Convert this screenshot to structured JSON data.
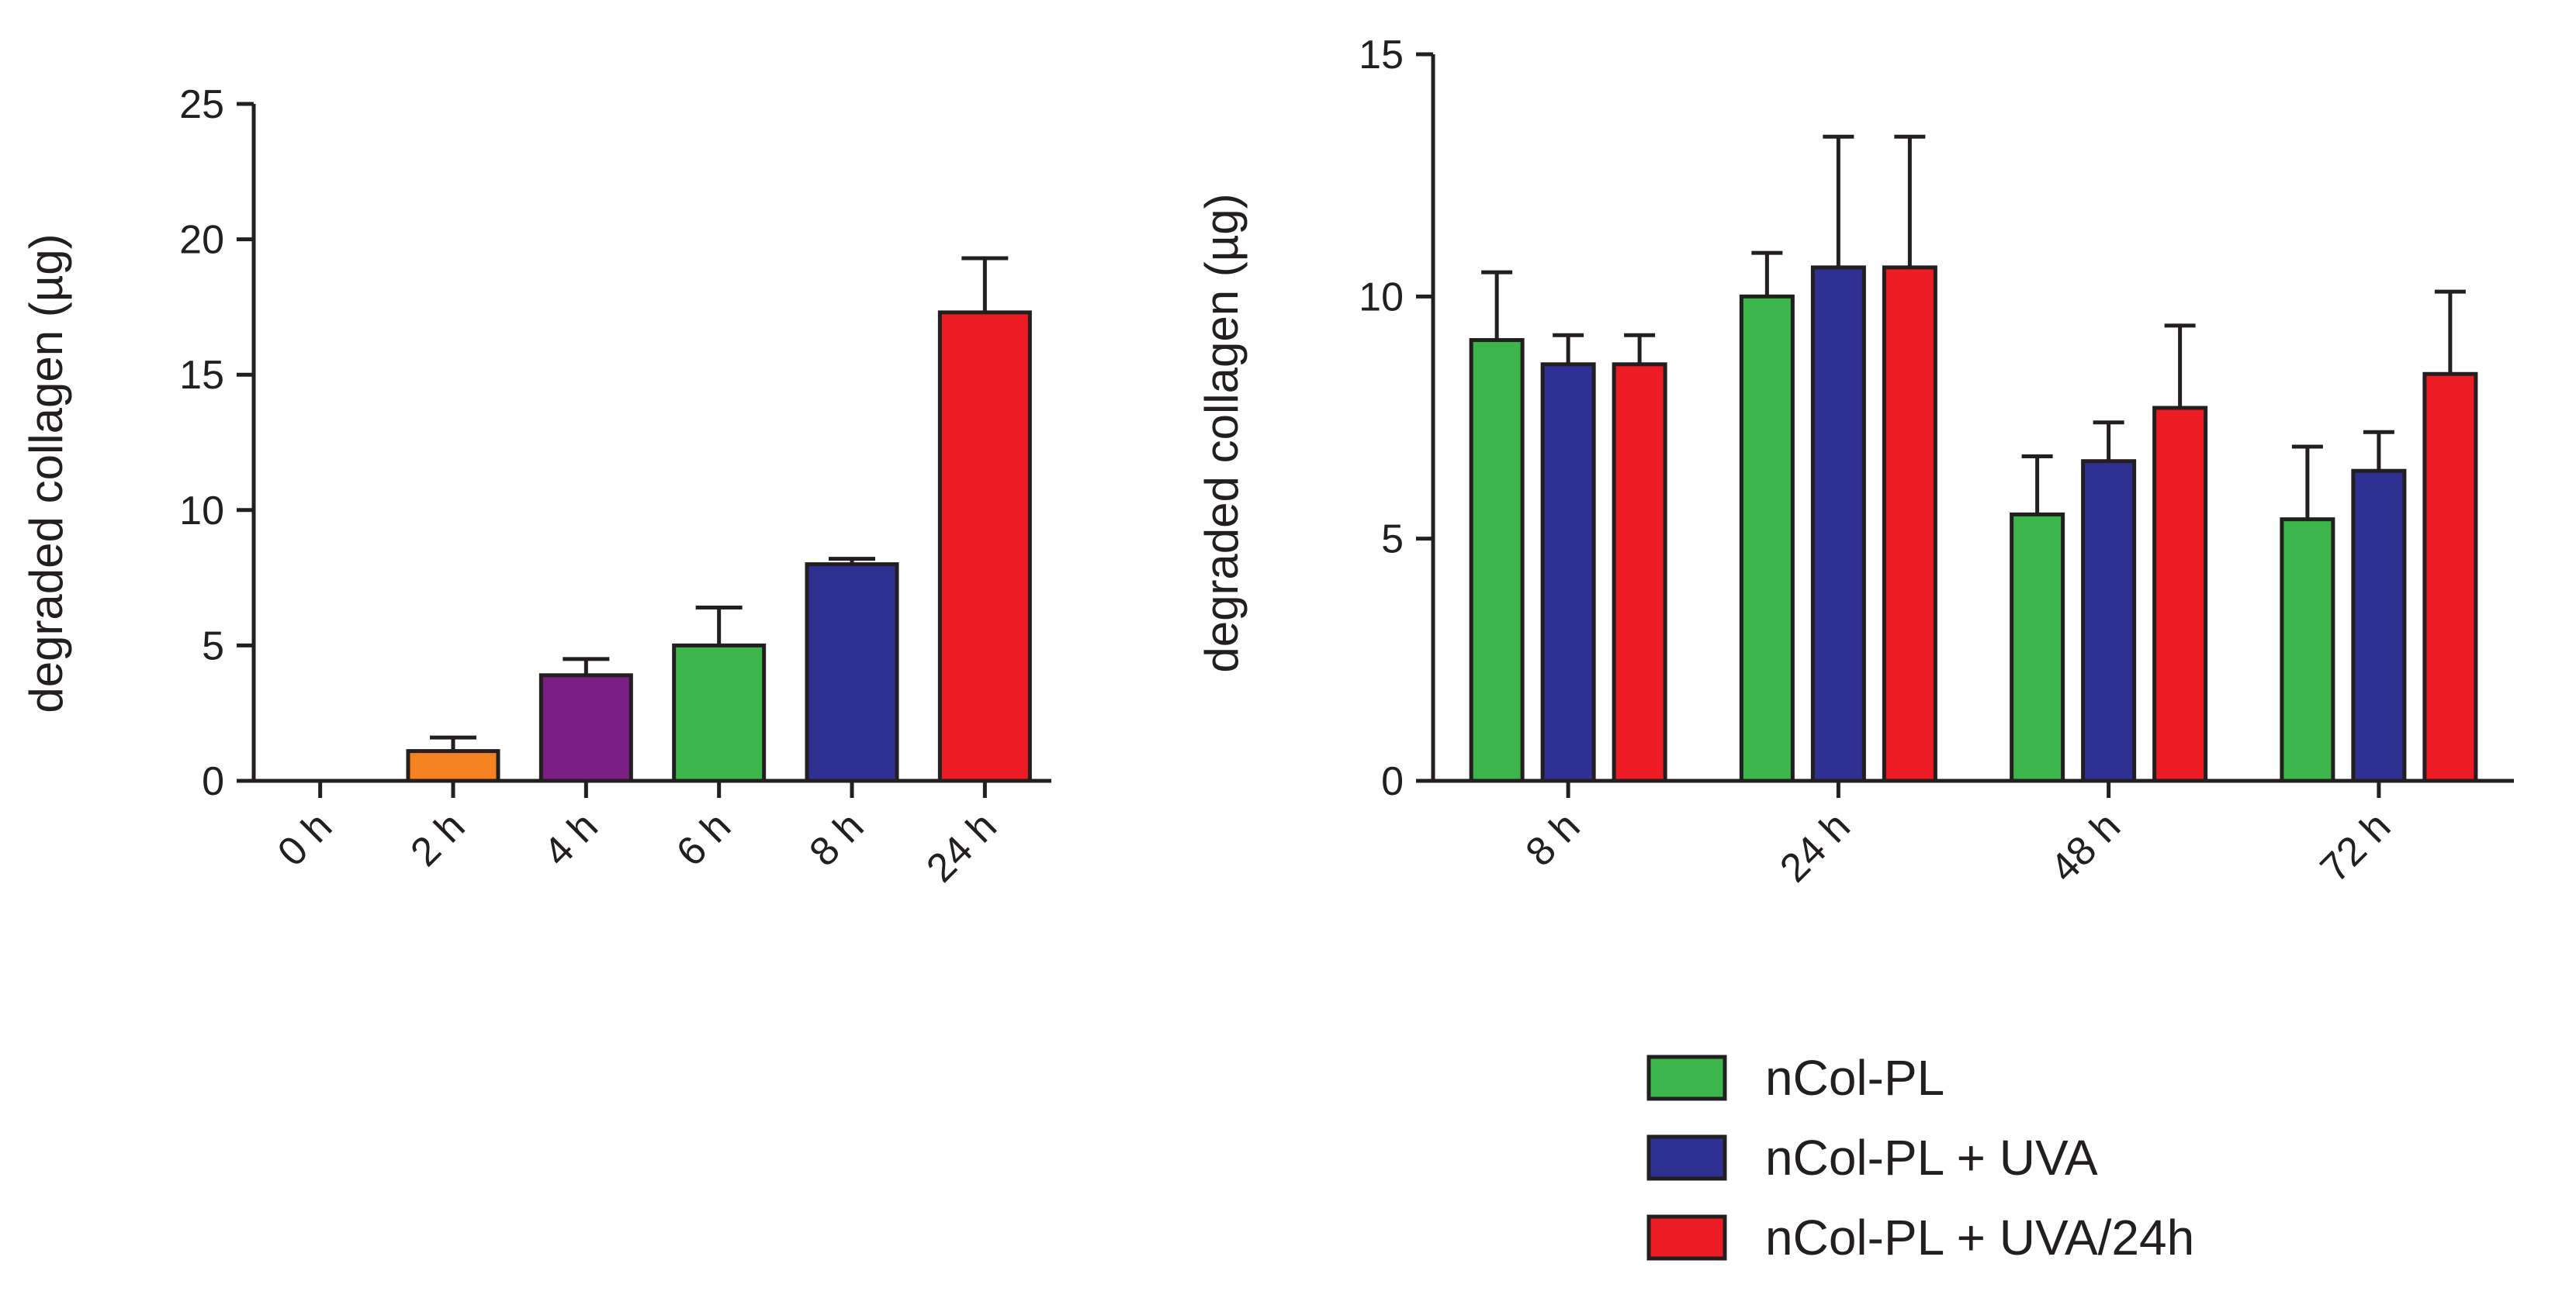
{
  "chart_data": [
    {
      "type": "bar",
      "ylabel": "degraded collagen (µg)",
      "xlabel": "",
      "ylim": [
        0,
        25
      ],
      "yticks": [
        0,
        5,
        10,
        15,
        20,
        25
      ],
      "categories": [
        "0 h",
        "2 h",
        "4 h",
        "6 h",
        "8 h",
        "24 h"
      ],
      "values": [
        0,
        1.1,
        3.9,
        5.0,
        8.0,
        17.3
      ],
      "errors": [
        0,
        0.5,
        0.6,
        1.4,
        0.2,
        2.0
      ],
      "colors": [
        "#ffffff",
        "#f58220",
        "#7b1f84",
        "#3cb54a",
        "#2e3192",
        "#ed1c24"
      ]
    },
    {
      "type": "bar",
      "ylabel": "degraded collagen (µg)",
      "xlabel": "",
      "ylim": [
        0,
        15
      ],
      "yticks": [
        0,
        5,
        10,
        15
      ],
      "categories": [
        "8 h",
        "24 h",
        "48 h",
        "72 h"
      ],
      "series": [
        {
          "name": "nCol-PL",
          "color": "#3cb54a",
          "values": [
            9.1,
            10.0,
            5.5,
            5.4
          ],
          "errors": [
            1.4,
            0.9,
            1.2,
            1.5
          ]
        },
        {
          "name": "nCol-PL + UVA",
          "color": "#2e3192",
          "values": [
            8.6,
            10.6,
            6.6,
            6.4
          ],
          "errors": [
            0.6,
            2.7,
            0.8,
            0.8
          ]
        },
        {
          "name": "nCol-PL + UVA/24h",
          "color": "#ed1c24",
          "values": [
            8.6,
            10.6,
            7.7,
            8.4
          ],
          "errors": [
            0.6,
            2.7,
            1.7,
            1.7
          ]
        }
      ],
      "legend_position": "bottom-right"
    }
  ]
}
